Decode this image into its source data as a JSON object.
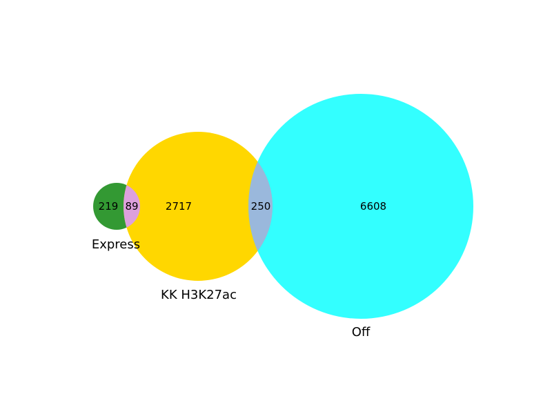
{
  "sets": [
    {
      "id": "express",
      "label": "Express",
      "color": "#008000"
    },
    {
      "id": "kk",
      "label": "KK H3K27ac",
      "color": "#ffd700"
    },
    {
      "id": "off",
      "label": "Off",
      "color": "#00ffff"
    }
  ],
  "regions": {
    "express_only": "219",
    "express_kk": "89",
    "kk_only": "2717",
    "kk_off": "250",
    "off_only": "6608"
  },
  "overlap_colors": {
    "express_kk": "#dda0dd",
    "kk_off": "#9ab8dc"
  }
}
